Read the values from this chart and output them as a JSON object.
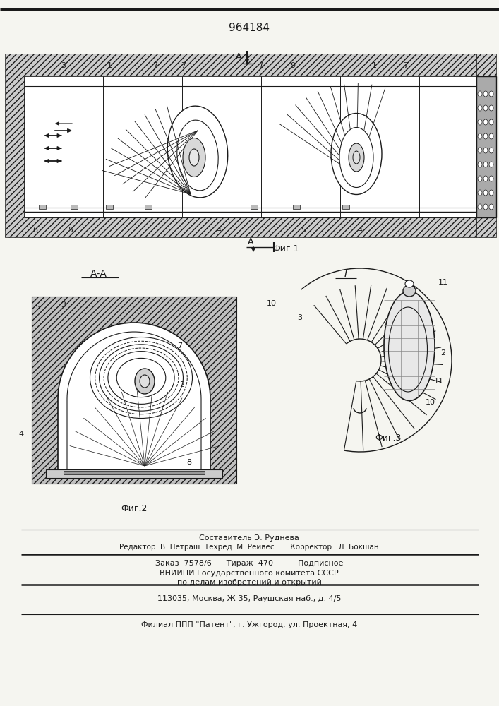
{
  "patent_number": "964184",
  "background_color": "#f5f5f0",
  "line_color": "#1a1a1a",
  "fig1_label": "Фиг.1",
  "fig2_label": "Фиг.2",
  "fig3_label": "Фиг.3",
  "section_label_aa": "А-А",
  "section_label_i": "I",
  "composer_line": "Составитель Э. Руднева",
  "editor_line": "Редактор  В. Петраш  Техред  М. Рейвес       Корректор   Л. Бокшан",
  "footer_line1": "Заказ  7578/6      Тираж  470          Подписное",
  "footer_line2": "ВНИИПИ Государственного комитета СССР",
  "footer_line3": "по делам изобретений и открытий",
  "footer_line4": "113035, Москва, Ж-35, Раушская наб., д. 4/5",
  "footer_line5": "Филиал ППП \"Патент\", г. Ужгород, ул. Проектная, 4"
}
